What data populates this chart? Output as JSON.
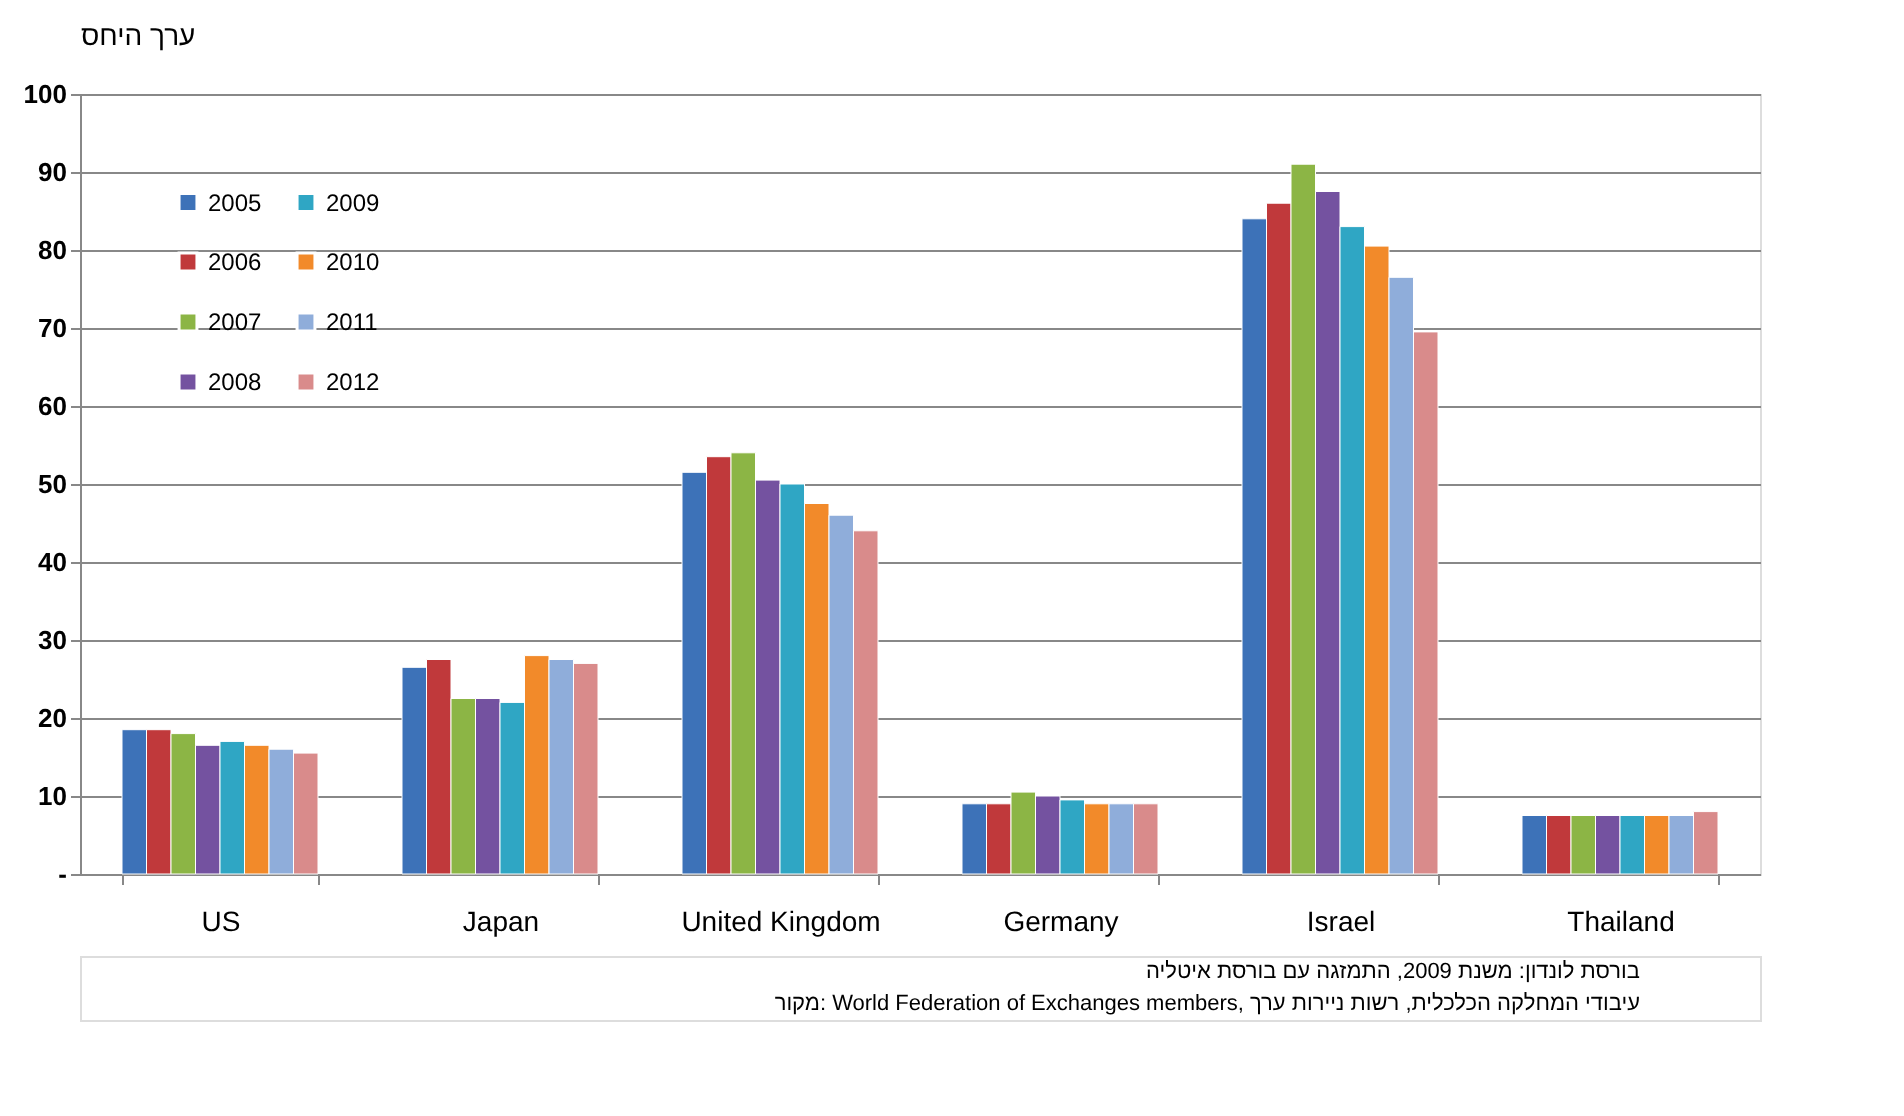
{
  "chart_data": {
    "type": "bar",
    "ylabel": "ערך היחס",
    "categories": [
      "US",
      "Japan",
      "United Kingdom",
      "Germany",
      "Israel",
      "Thailand"
    ],
    "series": [
      {
        "name": "2005",
        "color": "#3d72b8",
        "values": [
          18.5,
          26.5,
          51.5,
          9,
          84,
          7.5
        ]
      },
      {
        "name": "2006",
        "color": "#c0393b",
        "values": [
          18.5,
          27.5,
          53.5,
          9,
          86,
          7.5
        ]
      },
      {
        "name": "2007",
        "color": "#8cb545",
        "values": [
          18,
          22.5,
          54,
          10.5,
          91,
          7.5
        ]
      },
      {
        "name": "2008",
        "color": "#7452a0",
        "values": [
          16.5,
          22.5,
          50.5,
          10,
          87.5,
          7.5
        ]
      },
      {
        "name": "2009",
        "color": "#2fa6c4",
        "values": [
          17,
          22,
          50,
          9.5,
          83,
          7.5
        ]
      },
      {
        "name": "2010",
        "color": "#f28a2a",
        "values": [
          16.5,
          28,
          47.5,
          9,
          80.5,
          7.5
        ]
      },
      {
        "name": "2011",
        "color": "#8fadda",
        "values": [
          16,
          27.5,
          46,
          9,
          76.5,
          7.5
        ]
      },
      {
        "name": "2012",
        "color": "#d98b8b",
        "values": [
          15.5,
          27,
          44,
          9,
          69.5,
          8
        ]
      }
    ],
    "ylim": [
      0,
      100
    ],
    "yticks": [
      {
        "value": 0,
        "label": "-"
      },
      10,
      20,
      30,
      40,
      50,
      60,
      70,
      80,
      90,
      100
    ],
    "grid": "y",
    "legend": "top left",
    "annotations": [
      "בורסת לונדון: משנת 2009, התמזגה עם בורסת איטליה",
      "מקור: World Federation of Exchanges members, עיבודי המחלקה הכלכלית, רשות ניירות ערך"
    ]
  }
}
